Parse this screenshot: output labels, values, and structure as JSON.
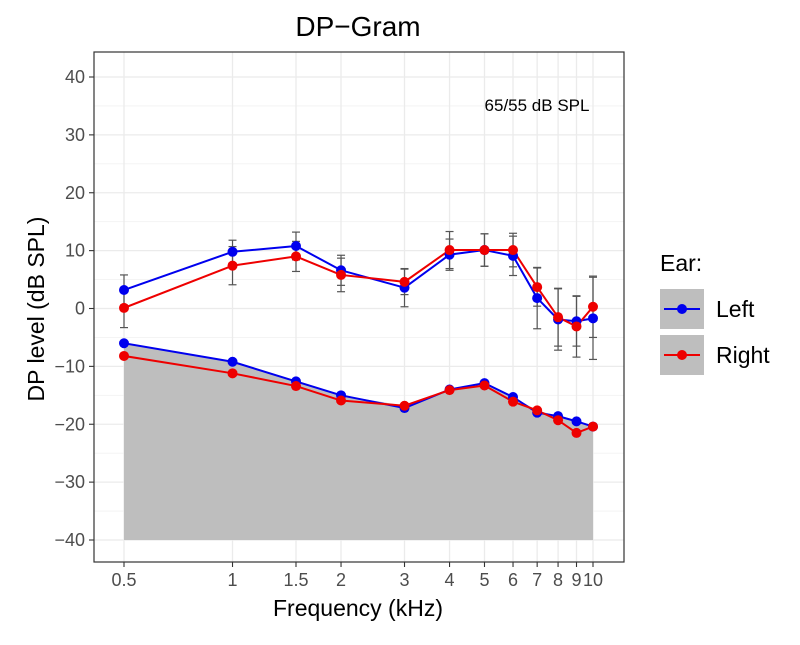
{
  "chart_data": {
    "type": "line",
    "title": "DP−Gram",
    "xlabel": "Frequency (kHz)",
    "ylabel": "DP level (dB SPL)",
    "annotation": "65/55 dB SPL",
    "x_scale": "log",
    "xlim": [
      0.5,
      10
    ],
    "ylim": [
      -40,
      40
    ],
    "x_ticks": [
      0.5,
      1,
      1.5,
      2,
      3,
      4,
      5,
      6,
      7,
      8,
      9,
      10
    ],
    "x_tick_labels": [
      "0.5",
      "1",
      "1.5",
      "2",
      "3",
      "4",
      "5",
      "6",
      "7",
      "8",
      "9",
      "10"
    ],
    "y_ticks": [
      -40,
      -30,
      -20,
      -10,
      0,
      10,
      20,
      30,
      40
    ],
    "y_tick_labels": [
      "−40",
      "−30",
      "−20",
      "−10",
      "0",
      "10",
      "20",
      "30",
      "40"
    ],
    "grid": true,
    "legend": {
      "title": "Ear:",
      "placement": "right",
      "entries": [
        "Left",
        "Right"
      ]
    },
    "x": [
      0.5,
      1,
      1.5,
      2,
      3,
      4,
      5,
      6,
      7,
      8,
      9,
      10
    ],
    "series": [
      {
        "name": "Left",
        "color": "#0000ee",
        "dp": [
          3.2,
          9.8,
          10.8,
          6.6,
          3.6,
          9.3,
          10.1,
          9.1,
          1.8,
          -1.9,
          -2.2,
          -1.7
        ],
        "dp_error": [
          2.6,
          2.0,
          2.4,
          2.6,
          3.3,
          2.7,
          2.8,
          3.4,
          5.3,
          5.3,
          4.3,
          7.1
        ],
        "noise": [
          -6.0,
          -9.2,
          -12.6,
          -15.0,
          -17.2,
          -14.0,
          -12.9,
          -15.3,
          -18.0,
          -18.6,
          -19.5,
          -20.4
        ]
      },
      {
        "name": "Right",
        "color": "#ee0000",
        "dp": [
          0.1,
          7.4,
          9.0,
          5.8,
          4.6,
          10.1,
          10.1,
          10.1,
          3.7,
          -1.5,
          -3.1,
          0.3
        ],
        "dp_error": [
          3.4,
          3.3,
          2.6,
          2.9,
          2.2,
          3.2,
          2.8,
          2.9,
          3.3,
          5.0,
          5.3,
          5.3
        ],
        "noise": [
          -8.2,
          -11.2,
          -13.4,
          -15.9,
          -16.8,
          -14.1,
          -13.3,
          -16.1,
          -17.6,
          -19.3,
          -21.5,
          -20.4
        ]
      }
    ],
    "noise_floor_fill": "#bebebe"
  }
}
